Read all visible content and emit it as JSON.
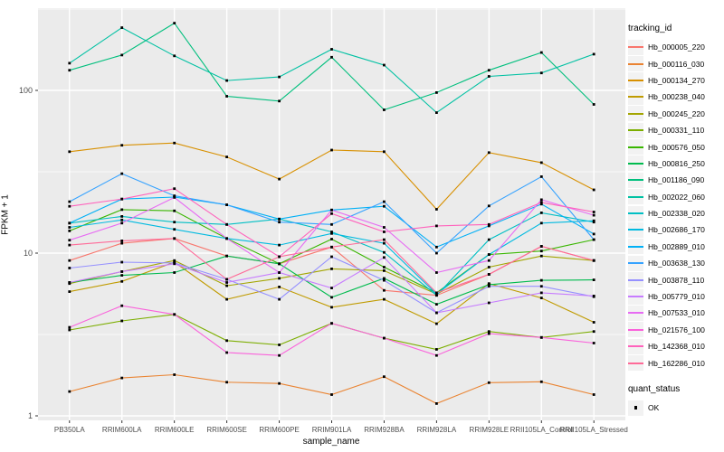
{
  "figure": {
    "background": "#FFFFFF",
    "panel_background": "#EBEBEB",
    "grid_color": "#FFFFFF",
    "tick_color": "#333333",
    "tick_label_color": "#4D4D4D",
    "axis_title_color": "#000000"
  },
  "chart_data": {
    "type": "line",
    "title": "",
    "xlabel": "sample_name",
    "ylabel": "FPKM + 1",
    "y_scale": "log10",
    "ylim": [
      0.94,
      320
    ],
    "y_ticks": [
      {
        "label": "1",
        "value": 1
      },
      {
        "label": "10",
        "value": 10
      },
      {
        "label": "100",
        "value": 100
      }
    ],
    "y_minor_ticks": [
      3.162,
      31.62,
      316.2
    ],
    "grid": "on",
    "legend_position": "right",
    "categories": [
      "PB350LA",
      "RRIM600LA",
      "RRIM600LE",
      "RRIM600SE",
      "RRIM600PE",
      "RRIM901LA",
      "RRIM928BA",
      "RRIM928LA",
      "RRIM928LE",
      "RRII105LA_Control",
      "RRII105LA_Stressed"
    ],
    "series": [
      {
        "name": "Hb_000005_220",
        "color": "#F8766D",
        "values": [
          9.0,
          11.5,
          12.3,
          9.6,
          8.6,
          10.9,
          5.9,
          5.5,
          7.4,
          11.0,
          9.0
        ]
      },
      {
        "name": "Hb_000116_030",
        "color": "#EA8331",
        "values": [
          1.41,
          1.71,
          1.79,
          1.61,
          1.58,
          1.35,
          1.74,
          1.19,
          1.6,
          1.62,
          1.35
        ]
      },
      {
        "name": "Hb_000134_270",
        "color": "#D89000",
        "values": [
          42,
          46,
          47.5,
          39,
          28.5,
          43,
          42,
          18.6,
          41.5,
          36,
          24.5
        ]
      },
      {
        "name": "Hb_000238_040",
        "color": "#C09B00",
        "values": [
          5.8,
          6.7,
          8.8,
          5.2,
          6.2,
          4.65,
          5.2,
          3.68,
          6.5,
          5.3,
          3.76
        ]
      },
      {
        "name": "Hb_000245_220",
        "color": "#A3A500",
        "values": [
          6.5,
          7.7,
          9.0,
          6.3,
          7.0,
          8.0,
          7.8,
          5.6,
          8.2,
          9.6,
          9.0
        ]
      },
      {
        "name": "Hb_000331_110",
        "color": "#7CAE00",
        "values": [
          3.37,
          3.83,
          4.2,
          2.9,
          2.73,
          3.7,
          3.0,
          2.56,
          3.3,
          3.03,
          3.3
        ]
      },
      {
        "name": "Hb_000576_050",
        "color": "#39B600",
        "values": [
          13.7,
          18.5,
          18.2,
          12.3,
          8.6,
          12.2,
          8.2,
          5.7,
          9.8,
          10.3,
          12.1
        ]
      },
      {
        "name": "Hb_000816_250",
        "color": "#00BB4E",
        "values": [
          6.6,
          7.3,
          7.6,
          9.6,
          8.6,
          5.35,
          7.0,
          4.85,
          6.4,
          6.8,
          6.85
        ]
      },
      {
        "name": "Hb_001186_090",
        "color": "#00BF7D",
        "values": [
          133,
          165,
          259,
          92,
          86,
          160,
          76,
          97,
          133,
          171,
          82
        ]
      },
      {
        "name": "Hb_002022_060",
        "color": "#00C1A3",
        "values": [
          147,
          243,
          163,
          115,
          121,
          179,
          143,
          73,
          122,
          128,
          167
        ]
      },
      {
        "name": "Hb_002338_020",
        "color": "#00BFC4",
        "values": [
          15.3,
          16.8,
          15.5,
          15.0,
          16.2,
          13.5,
          10.1,
          5.5,
          12.1,
          17.7,
          15.5
        ]
      },
      {
        "name": "Hb_002686_170",
        "color": "#00BAE0",
        "values": [
          14.4,
          16.0,
          14.0,
          12.3,
          11.2,
          13.2,
          11.5,
          5.6,
          9.8,
          15.3,
          15.8
        ]
      },
      {
        "name": "Hb_002889_010",
        "color": "#00B0F6",
        "values": [
          15.3,
          21.5,
          22.1,
          19.8,
          16.2,
          18.4,
          19.4,
          10.9,
          14.7,
          20.0,
          13.1
        ]
      },
      {
        "name": "Hb_003638_130",
        "color": "#35A2FF",
        "values": [
          20.7,
          30.8,
          22.5,
          19.8,
          15.5,
          15.0,
          20.7,
          10.0,
          19.5,
          29.5,
          12.1
        ]
      },
      {
        "name": "Hb_003878_110",
        "color": "#9590FF",
        "values": [
          8.1,
          8.8,
          8.7,
          6.9,
          5.2,
          9.5,
          6.8,
          4.3,
          6.25,
          6.25,
          5.4
        ]
      },
      {
        "name": "Hb_005779_010",
        "color": "#C77CFF",
        "values": [
          6.6,
          7.7,
          8.6,
          6.6,
          7.6,
          6.1,
          9.4,
          4.3,
          4.95,
          5.7,
          5.45
        ]
      },
      {
        "name": "Hb_007533_010",
        "color": "#E76BF3",
        "values": [
          12.0,
          15.3,
          22.0,
          12.3,
          7.6,
          18.4,
          14.4,
          7.6,
          9.0,
          21.3,
          17.1
        ]
      },
      {
        "name": "Hb_021576_100",
        "color": "#FA62DB",
        "values": [
          3.5,
          4.75,
          4.2,
          2.45,
          2.35,
          3.7,
          3.0,
          2.35,
          3.2,
          3.03,
          2.8
        ]
      },
      {
        "name": "Hb_142368_010",
        "color": "#FF62BC",
        "values": [
          19.4,
          21.5,
          24.9,
          15.0,
          9.5,
          17.5,
          13.5,
          14.7,
          15.0,
          20.5,
          17.9
        ]
      },
      {
        "name": "Hb_162286_010",
        "color": "#FF6A98",
        "values": [
          11.2,
          11.9,
          12.3,
          6.9,
          9.5,
          10.9,
          12.1,
          5.7,
          7.4,
          11.0,
          9.0
        ]
      }
    ],
    "legend": {
      "series_title": "tracking_id",
      "status_title": "quant_status",
      "status_entries": [
        {
          "label": "OK",
          "shape": "square",
          "color": "#000000"
        }
      ]
    }
  }
}
